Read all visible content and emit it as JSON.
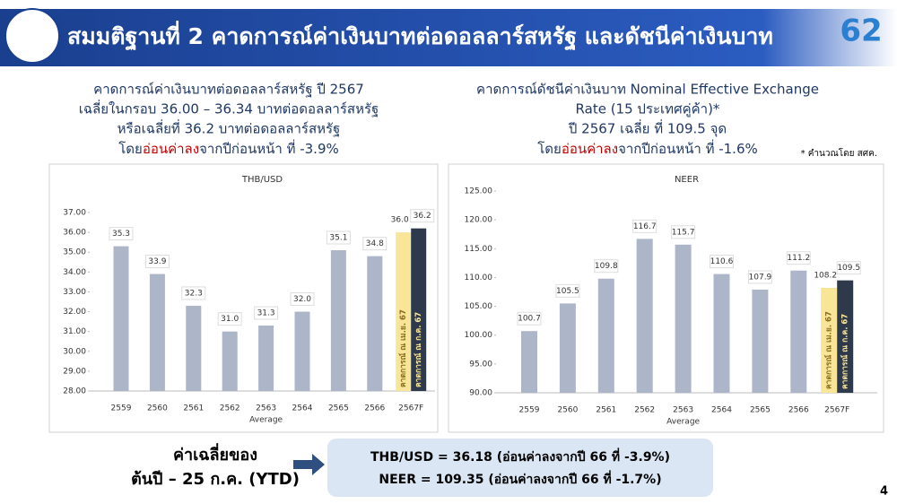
{
  "header": {
    "title": "สมมติฐานที่ 2 คาดการณ์ค่าเงินบาทต่อดอลลาร์สหรัฐ และดัชนีค่าเงินบาท",
    "logo_year": "62"
  },
  "left_caption": {
    "lines": [
      "คาดการณ์ค่าเงินบาทต่อดอลลาร์สหรัฐ ปี 2567",
      "เฉลี่ยในกรอบ 36.00 – 36.34 บาทต่อดอลลาร์สหรัฐ",
      "หรือเฉลี่ยที่ 36.2 บาทต่อดอลลาร์สหรัฐ"
    ],
    "pre": "โดย",
    "emph": "อ่อนค่าลง",
    "post": "จากปีก่อนหน้า ที่ -3.9%"
  },
  "right_caption": {
    "lines": [
      "คาดการณ์ดัชนีค่าเงินบาท Nominal Effective Exchange",
      "Rate (15 ประเทศคู่ค้า)*",
      "ปี 2567 เฉลี่ย ที่ 109.5 จุด"
    ],
    "pre": "โดย",
    "emph": "อ่อนค่าลง",
    "post": "จากปีก่อนหน้า ที่ -1.6%"
  },
  "note": "* คำนวณโดย สศค.",
  "chart_data": [
    {
      "type": "bar",
      "title": "THB/USD",
      "x_label": "Average",
      "color": "#adb5c8",
      "categories": [
        "2559",
        "2560",
        "2561",
        "2562",
        "2563",
        "2564",
        "2565",
        "2566",
        "2567F"
      ],
      "values": [
        35.3,
        33.9,
        32.3,
        31.0,
        31.3,
        32.0,
        35.1,
        34.8,
        null
      ],
      "value_labels": [
        "35.3",
        "33.9",
        "32.3",
        "31.0",
        "31.3",
        "32.0",
        "35.1",
        "34.8",
        null
      ],
      "forecasts": [
        {
          "label": "คาดการณ์ ณ เม.ย. 67",
          "value": 36.0,
          "value_label": "36.0",
          "color": "#f9e597"
        },
        {
          "label": "คาดการณ์ ณ ก.ค. 67",
          "value": 36.2,
          "value_label": "36.2",
          "color": "#2e3a4b"
        }
      ],
      "ylim": [
        28,
        37
      ],
      "yticks": [
        {
          "value": 28,
          "label": "28.00"
        },
        {
          "value": 29,
          "label": "29.00"
        },
        {
          "value": 30,
          "label": "30.00"
        },
        {
          "value": 31,
          "label": "31.00"
        },
        {
          "value": 32,
          "label": "32.00"
        },
        {
          "value": 33,
          "label": "33.00"
        },
        {
          "value": 34,
          "label": "34.00"
        },
        {
          "value": 35,
          "label": "35.00"
        },
        {
          "value": 36,
          "label": "36.00"
        },
        {
          "value": 37,
          "label": "37.00"
        }
      ]
    },
    {
      "type": "bar",
      "title": "NEER",
      "x_label": "Average",
      "color": "#adb5c8",
      "categories": [
        "2559",
        "2560",
        "2561",
        "2562",
        "2563",
        "2564",
        "2565",
        "2566",
        "2567F"
      ],
      "values": [
        100.7,
        105.5,
        109.8,
        116.7,
        115.7,
        110.6,
        107.9,
        111.2,
        null
      ],
      "forecasts": [
        {
          "label": "คาดการณ์ ณ เม.ย. 67",
          "value": 108.2,
          "color": "#f9e597"
        },
        {
          "label": "คาดการณ์ ณ ก.ค. 67",
          "value": 109.5,
          "color": "#2e3a4b"
        }
      ],
      "ylim": [
        90,
        125
      ],
      "yticks": [
        {
          "value": 90,
          "label": "90.00"
        },
        {
          "value": 95,
          "label": "95.00"
        },
        {
          "value": 100,
          "label": "100.00"
        },
        {
          "value": 105,
          "label": "105.00"
        },
        {
          "value": 110,
          "label": "110.00"
        },
        {
          "value": 115,
          "label": "115.00"
        },
        {
          "value": 120,
          "label": "120.00"
        },
        {
          "value": 125,
          "label": "125.00"
        }
      ]
    }
  ],
  "summary": {
    "label_lines": [
      "ค่าเฉลี่ยของ",
      "ต้นปี – 25 ก.ค. (YTD)"
    ],
    "box_lines": [
      "THB/USD = 36.18 (อ่อนค่าลงจากปี 66 ที่ -3.9%)",
      "NEER = 109.35 (อ่อนค่าลงจากปี 66 ที่ -1.7%)"
    ]
  },
  "page_number": "4"
}
